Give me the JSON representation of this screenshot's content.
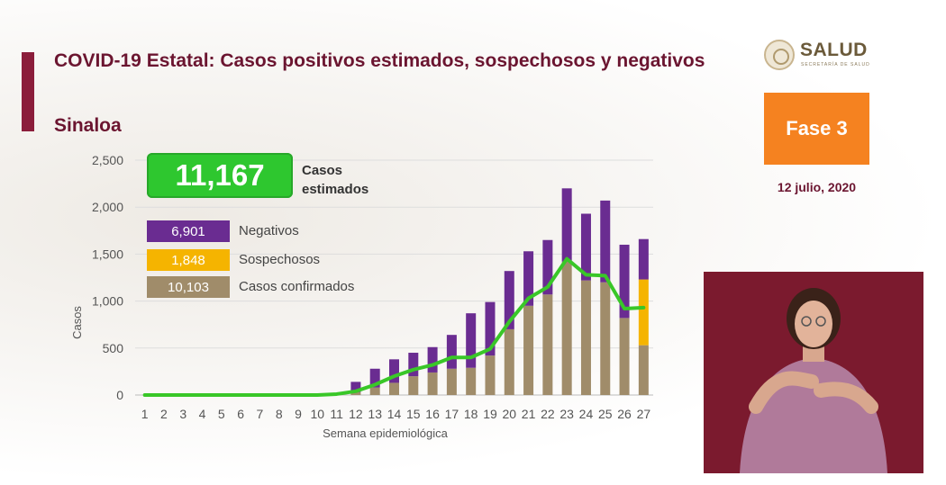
{
  "header": {
    "title": "COVID-19 Estatal: Casos positivos estimados, sospechosos y negativos",
    "subtitle": "Sinaloa"
  },
  "logo": {
    "text": "SALUD",
    "subtext": "SECRETARÍA DE SALUD"
  },
  "phase": {
    "label": "Fase 3",
    "color": "#f58220"
  },
  "date": "12 julio, 2020",
  "summary": {
    "total": "11,167",
    "total_label": "Casos estimados"
  },
  "legend": [
    {
      "value": "6,901",
      "label": "Negativos",
      "color": "#6a2c91"
    },
    {
      "value": "1,848",
      "label": "Sospechosos",
      "color": "#f5b400"
    },
    {
      "value": "10,103",
      "label": "Casos confirmados",
      "color": "#a08c6a"
    }
  ],
  "chart_data": {
    "type": "bar",
    "stacked": true,
    "xlabel": "Semana epidemiológica",
    "ylabel": "Casos",
    "ylim": [
      0,
      2500
    ],
    "yticks": [
      0,
      500,
      1000,
      1500,
      2000,
      2500
    ],
    "ytick_labels": [
      "0",
      "500",
      "1,000",
      "1,500",
      "2,000",
      "2,500"
    ],
    "grid": true,
    "categories": [
      "1",
      "2",
      "3",
      "4",
      "5",
      "6",
      "7",
      "8",
      "9",
      "10",
      "11",
      "12",
      "13",
      "14",
      "15",
      "16",
      "17",
      "18",
      "19",
      "20",
      "21",
      "22",
      "23",
      "24",
      "25",
      "26",
      "27"
    ],
    "series": [
      {
        "name": "Casos confirmados",
        "color": "#a08c6a",
        "values": [
          0,
          0,
          0,
          0,
          0,
          0,
          0,
          0,
          0,
          0,
          5,
          30,
          80,
          130,
          200,
          240,
          280,
          290,
          420,
          700,
          950,
          1070,
          1420,
          1220,
          1200,
          820,
          530
        ]
      },
      {
        "name": "Sospechosos",
        "color": "#f5b400",
        "values": [
          0,
          0,
          0,
          0,
          0,
          0,
          0,
          0,
          0,
          0,
          0,
          0,
          0,
          0,
          0,
          0,
          0,
          0,
          0,
          0,
          0,
          0,
          0,
          0,
          0,
          0,
          700
        ]
      },
      {
        "name": "Negativos",
        "color": "#6a2c91",
        "values": [
          0,
          0,
          0,
          0,
          0,
          0,
          0,
          0,
          0,
          0,
          5,
          110,
          200,
          250,
          250,
          270,
          360,
          580,
          570,
          620,
          580,
          580,
          780,
          710,
          870,
          780,
          430
        ]
      }
    ],
    "line": {
      "name": "Casos estimados",
      "color": "#39c728",
      "values": [
        0,
        0,
        0,
        0,
        0,
        0,
        0,
        0,
        0,
        0,
        10,
        40,
        110,
        200,
        270,
        320,
        400,
        400,
        490,
        780,
        1030,
        1150,
        1450,
        1280,
        1270,
        920,
        930
      ]
    }
  }
}
